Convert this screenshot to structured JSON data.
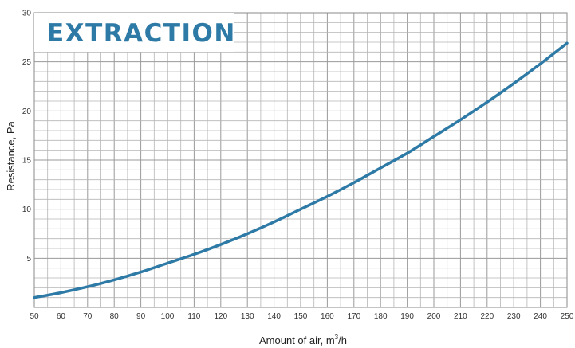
{
  "chart_data": {
    "type": "line",
    "title": "EXTRACTION",
    "xlabel": "Amount of air, m",
    "xlabel_sup": "3",
    "xlabel_suffix": "/h",
    "ylabel": "Resistance, Pa",
    "xlim": [
      50,
      250
    ],
    "ylim": [
      0,
      30
    ],
    "x_ticks": [
      50,
      60,
      70,
      80,
      90,
      100,
      110,
      120,
      130,
      140,
      150,
      160,
      170,
      180,
      190,
      200,
      210,
      220,
      230,
      240,
      250
    ],
    "y_ticks": [
      5,
      10,
      15,
      20,
      25,
      30
    ],
    "grid": true,
    "grid_x_step": 5,
    "grid_y_step": 1,
    "series": [
      {
        "color": "#2e7aa6",
        "x": [
          50,
          60,
          70,
          80,
          90,
          100,
          110,
          120,
          130,
          140,
          150,
          160,
          170,
          180,
          190,
          200,
          210,
          220,
          230,
          240,
          250
        ],
        "y": [
          1.0,
          1.5,
          2.1,
          2.8,
          3.6,
          4.5,
          5.4,
          6.4,
          7.5,
          8.7,
          10.0,
          11.3,
          12.7,
          14.2,
          15.7,
          17.4,
          19.1,
          20.9,
          22.8,
          24.8,
          26.9
        ]
      }
    ],
    "title_color": "#2e7aa6"
  }
}
